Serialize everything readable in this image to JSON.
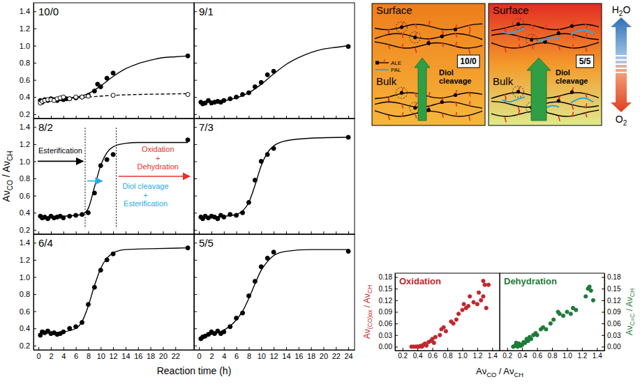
{
  "chart_data": [
    {
      "type": "scatter",
      "title": "10/0",
      "xlim": [
        -0.8,
        25
      ],
      "ylim": [
        0.15,
        1.5
      ],
      "xticks": [
        0,
        2,
        4,
        6,
        8,
        10,
        12,
        14,
        16,
        18,
        20,
        22
      ],
      "yticks": [
        0.2,
        0.4,
        0.6,
        0.8,
        {
          "value": 1,
          "label": "1.0"
        },
        1.2,
        1.4
      ],
      "tick_labels": "y",
      "series": [
        {
          "type": "scatter",
          "marker": "circle",
          "color": "#000000",
          "x": [
            0.3,
            0.6,
            1,
            1.5,
            2,
            2.5,
            3,
            3.5,
            4,
            4.5,
            5,
            6,
            7,
            8,
            9,
            9.5,
            10,
            11,
            12,
            24
          ],
          "values": [
            0.36,
            0.34,
            0.37,
            0.36,
            0.38,
            0.37,
            0.36,
            0.38,
            0.37,
            0.38,
            0.38,
            0.39,
            0.4,
            0.42,
            0.47,
            0.55,
            0.52,
            0.62,
            0.68,
            0.88
          ]
        },
        {
          "type": "scatter",
          "marker": "open_circle",
          "color": "#000000",
          "x": [
            0.3,
            0.6,
            1,
            1.5,
            2,
            2.5,
            3,
            3.5,
            4,
            5,
            6,
            7,
            8,
            12,
            24
          ],
          "values": [
            0.33,
            0.35,
            0.36,
            0.37,
            0.37,
            0.36,
            0.38,
            0.39,
            0.4,
            0.38,
            0.4,
            0.4,
            0.41,
            0.42,
            0.43
          ]
        },
        {
          "type": "line",
          "line_style": "solid",
          "color": "#000000",
          "x": [
            0,
            2,
            4,
            6,
            8,
            10,
            12,
            14,
            16,
            18,
            20,
            22,
            24
          ],
          "values": [
            0.36,
            0.37,
            0.38,
            0.4,
            0.44,
            0.53,
            0.64,
            0.73,
            0.79,
            0.83,
            0.86,
            0.87,
            0.88
          ]
        },
        {
          "type": "line",
          "line_style": "dashed",
          "color": "#000000",
          "x": [
            0,
            4,
            8,
            12,
            16,
            20,
            24
          ],
          "values": [
            0.34,
            0.38,
            0.4,
            0.42,
            0.43,
            0.435,
            0.44
          ]
        }
      ]
    },
    {
      "type": "scatter",
      "title": "9/1",
      "xlim": [
        -0.8,
        25
      ],
      "ylim": [
        0.15,
        1.5
      ],
      "xticks": [
        0,
        2,
        4,
        6,
        8,
        10,
        12,
        14,
        16,
        18,
        20,
        22,
        24
      ],
      "yticks": [
        0.2,
        0.4,
        0.6,
        0.8,
        {
          "value": 1,
          "label": "1.0"
        },
        1.2,
        1.4
      ],
      "tick_labels": false,
      "series": [
        {
          "type": "scatter",
          "marker": "circle",
          "color": "#000000",
          "x": [
            0.3,
            0.6,
            1,
            1.5,
            2,
            2.5,
            3,
            3.5,
            4,
            5,
            6,
            7,
            8,
            9,
            10,
            11,
            12,
            24
          ],
          "values": [
            0.34,
            0.32,
            0.33,
            0.36,
            0.33,
            0.34,
            0.35,
            0.34,
            0.36,
            0.38,
            0.4,
            0.43,
            0.45,
            0.52,
            0.57,
            0.66,
            0.7,
            0.99
          ]
        },
        {
          "type": "line",
          "line_style": "solid",
          "color": "#000000",
          "x": [
            0,
            2,
            4,
            6,
            8,
            10,
            12,
            14,
            16,
            18,
            20,
            22,
            24
          ],
          "values": [
            0.34,
            0.35,
            0.36,
            0.39,
            0.45,
            0.55,
            0.67,
            0.78,
            0.86,
            0.92,
            0.96,
            0.98,
            1.0
          ]
        }
      ]
    },
    {
      "type": "scatter",
      "title": "8/2",
      "xlim": [
        -0.8,
        25
      ],
      "ylim": [
        0.15,
        1.5
      ],
      "xticks": [
        0,
        2,
        4,
        6,
        8,
        10,
        12,
        14,
        16,
        18,
        20,
        22
      ],
      "yticks": [
        0.2,
        0.4,
        0.6,
        0.8,
        {
          "value": 1,
          "label": "1.0"
        },
        1.2,
        1.4
      ],
      "tick_labels": "y",
      "phase_bounds": [
        7.5,
        12.5
      ],
      "annotations": [
        {
          "text": [
            "Esterification"
          ],
          "color": "#000000"
        },
        {
          "text": [
            "Diol cleavage",
            "+",
            "Esterification"
          ],
          "color": "#29abe2"
        },
        {
          "text": [
            "Oxidation",
            "+",
            "Dehydration"
          ],
          "color": "#e8312a"
        }
      ],
      "series": [
        {
          "type": "scatter",
          "marker": "circle",
          "color": "#000000",
          "x": [
            0.3,
            0.6,
            1,
            1.5,
            2,
            2.5,
            3,
            3.5,
            4,
            5,
            6,
            7,
            8,
            9,
            10,
            11,
            12,
            24
          ],
          "values": [
            0.36,
            0.34,
            0.35,
            0.33,
            0.36,
            0.34,
            0.35,
            0.36,
            0.34,
            0.36,
            0.37,
            0.38,
            0.4,
            0.63,
            0.95,
            1.02,
            1.08,
            1.25
          ]
        },
        {
          "type": "line",
          "line_style": "solid",
          "color": "#000000",
          "x": [
            0,
            4,
            6,
            7,
            8,
            9,
            10,
            11,
            12,
            14,
            16,
            20,
            24
          ],
          "values": [
            0.35,
            0.36,
            0.37,
            0.38,
            0.45,
            0.7,
            0.95,
            1.1,
            1.17,
            1.21,
            1.22,
            1.22,
            1.22
          ]
        }
      ]
    },
    {
      "type": "scatter",
      "title": "7/3",
      "xlim": [
        -0.8,
        25
      ],
      "ylim": [
        0.15,
        1.5
      ],
      "xticks": [
        0,
        2,
        4,
        6,
        8,
        10,
        12,
        14,
        16,
        18,
        20,
        22,
        24
      ],
      "yticks": [
        0.2,
        0.4,
        0.6,
        0.8,
        {
          "value": 1,
          "label": "1.0"
        },
        1.2,
        1.4
      ],
      "tick_labels": false,
      "series": [
        {
          "type": "scatter",
          "marker": "circle",
          "color": "#000000",
          "x": [
            0.3,
            0.6,
            1,
            1.5,
            2,
            2.5,
            3,
            3.5,
            4,
            5,
            6,
            7,
            8,
            9,
            10,
            11,
            12,
            24
          ],
          "values": [
            0.35,
            0.33,
            0.36,
            0.34,
            0.36,
            0.35,
            0.33,
            0.37,
            0.35,
            0.38,
            0.37,
            0.4,
            0.52,
            0.78,
            1.0,
            1.08,
            1.15,
            1.28
          ]
        },
        {
          "type": "line",
          "line_style": "solid",
          "color": "#000000",
          "x": [
            0,
            4,
            6,
            7,
            8,
            9,
            10,
            11,
            12,
            14,
            18,
            24
          ],
          "values": [
            0.35,
            0.36,
            0.38,
            0.42,
            0.52,
            0.72,
            0.95,
            1.1,
            1.18,
            1.24,
            1.27,
            1.28
          ]
        }
      ]
    },
    {
      "type": "scatter",
      "title": "6/4",
      "xlim": [
        -0.8,
        25
      ],
      "ylim": [
        0.15,
        1.5
      ],
      "xticks": [
        0,
        2,
        4,
        6,
        8,
        10,
        12,
        14,
        16,
        18,
        20,
        22
      ],
      "yticks": [
        0.2,
        0.4,
        0.6,
        0.8,
        {
          "value": 1,
          "label": "1.0"
        },
        1.2,
        1.4
      ],
      "tick_labels": true,
      "series": [
        {
          "type": "scatter",
          "marker": "circle",
          "color": "#000000",
          "x": [
            0.3,
            0.6,
            1,
            1.5,
            2,
            2.5,
            3,
            3.5,
            4,
            5,
            6,
            7,
            8,
            9,
            10,
            11,
            12,
            24
          ],
          "values": [
            0.32,
            0.36,
            0.35,
            0.37,
            0.34,
            0.35,
            0.33,
            0.34,
            0.36,
            0.4,
            0.42,
            0.47,
            0.68,
            0.88,
            1.08,
            1.2,
            1.27,
            1.34
          ]
        },
        {
          "type": "line",
          "line_style": "solid",
          "color": "#000000",
          "x": [
            0,
            4,
            6,
            7,
            8,
            9,
            10,
            11,
            12,
            14,
            18,
            24
          ],
          "values": [
            0.34,
            0.36,
            0.4,
            0.48,
            0.66,
            0.9,
            1.1,
            1.22,
            1.28,
            1.32,
            1.33,
            1.34
          ]
        }
      ]
    },
    {
      "type": "scatter",
      "title": "5/5",
      "xlim": [
        -0.8,
        25
      ],
      "ylim": [
        0.15,
        1.5
      ],
      "xticks": [
        0,
        2,
        4,
        6,
        8,
        10,
        12,
        14,
        16,
        18,
        20,
        22,
        24
      ],
      "yticks": [
        0.2,
        0.4,
        0.6,
        0.8,
        {
          "value": 1,
          "label": "1.0"
        },
        1.2,
        1.4
      ],
      "tick_labels": "x",
      "series": [
        {
          "type": "scatter",
          "marker": "circle",
          "color": "#000000",
          "x": [
            0.3,
            0.6,
            1,
            1.5,
            2,
            2.5,
            3,
            3.5,
            4,
            5,
            6,
            7,
            8,
            9,
            10,
            11,
            12,
            24
          ],
          "values": [
            0.28,
            0.3,
            0.31,
            0.33,
            0.36,
            0.34,
            0.37,
            0.34,
            0.36,
            0.42,
            0.52,
            0.58,
            0.78,
            0.95,
            1.12,
            1.22,
            1.29,
            1.3
          ]
        },
        {
          "type": "line",
          "line_style": "solid",
          "color": "#000000",
          "x": [
            0,
            2,
            4,
            6,
            7,
            8,
            9,
            10,
            11,
            12,
            14,
            18,
            24
          ],
          "values": [
            0.29,
            0.33,
            0.38,
            0.5,
            0.6,
            0.75,
            0.92,
            1.08,
            1.18,
            1.25,
            1.3,
            1.32,
            1.32
          ]
        }
      ]
    },
    {
      "type": "scatter",
      "title": "Oxidation",
      "xlim": [
        0.1,
        1.5
      ],
      "ylim": [
        -0.01,
        0.19
      ],
      "xticks": [
        0.2,
        0.4,
        0.6,
        0.8,
        {
          "value": 1,
          "label": "1.0"
        },
        1.2,
        1.4
      ],
      "yticks": [
        {
          "value": 0,
          "label": "0.00"
        },
        0.03,
        0.06,
        0.09,
        0.12,
        0.15,
        0.18
      ],
      "y_label": [
        "Aν",
        "(CO)ox",
        " / Aν",
        "CH"
      ],
      "series": [
        {
          "type": "scatter",
          "marker": "circle",
          "color": "#c1272d",
          "x": [
            0.32,
            0.35,
            0.38,
            0.4,
            0.42,
            0.44,
            0.46,
            0.48,
            0.5,
            0.52,
            0.55,
            0.58,
            0.6,
            0.62,
            0.64,
            0.7,
            0.72,
            0.75,
            0.78,
            0.85,
            0.88,
            0.92,
            0.95,
            1.0,
            1.02,
            1.05,
            1.08,
            1.1,
            1.15,
            1.2,
            1.22,
            1.25,
            1.28,
            1.3,
            1.32,
            1.35,
            1.28
          ],
          "values": [
            0,
            0,
            0,
            0,
            0,
            0.002,
            0,
            0.005,
            0.008,
            0.003,
            0.012,
            0.015,
            0.02,
            0.01,
            0.025,
            0.03,
            0.045,
            0.05,
            0.04,
            0.065,
            0.06,
            0.07,
            0.085,
            0.095,
            0.11,
            0.1,
            0.105,
            0.13,
            0.115,
            0.11,
            0.14,
            0.12,
            0.17,
            0.16,
            0.1,
            0.16,
            0.13
          ]
        }
      ]
    },
    {
      "type": "scatter",
      "title": "Dehydration",
      "xlim": [
        0.1,
        1.5
      ],
      "y2lim": [
        -0.01,
        0.19
      ],
      "xticks": [
        0.2,
        0.4,
        0.6,
        0.8,
        {
          "value": 1,
          "label": "1.0"
        },
        1.2,
        1.4
      ],
      "y2ticks": [
        {
          "value": 0,
          "label": "0.00"
        },
        0.03,
        0.06,
        0.09,
        0.12,
        0.15,
        0.18
      ],
      "y2_label": [
        "Aν",
        "C=C",
        " / Aν",
        "CH"
      ],
      "series": [
        {
          "type": "scatter",
          "marker": "circle",
          "color": "#1e7b3a",
          "axis": "y2",
          "x": [
            0.28,
            0.3,
            0.32,
            0.34,
            0.35,
            0.36,
            0.38,
            0.4,
            0.42,
            0.44,
            0.46,
            0.48,
            0.5,
            0.52,
            0.55,
            0.58,
            0.6,
            0.65,
            0.68,
            0.72,
            0.78,
            0.82,
            0.88,
            0.9,
            0.95,
            1.0,
            1.05,
            1.08,
            1.12,
            1.25,
            1.28,
            1.3,
            1.32,
            1.35
          ],
          "values": [
            0,
            0.002,
            0.01,
            0,
            0.004,
            0.008,
            0.002,
            0.005,
            0.012,
            0.01,
            0.02,
            0.015,
            0.025,
            0.02,
            0.03,
            0.035,
            0.03,
            0.045,
            0.05,
            0.045,
            0.06,
            0.07,
            0.09,
            0.085,
            0.08,
            0.09,
            0.085,
            0.1,
            0.095,
            0.13,
            0.15,
            0.155,
            0.145,
            0.12
          ]
        }
      ]
    }
  ],
  "figure": {
    "kinetics": {
      "x_label": "Reaction time (h)",
      "y_label": [
        "Aν",
        "CO",
        " / Aν",
        "CH"
      ]
    },
    "correlation": {
      "x_label": [
        "Aν",
        "CO",
        " / Aν",
        "CH"
      ]
    }
  },
  "diagram": {
    "panels": [
      {
        "surface": "Surface",
        "bulk": "Bulk",
        "sample": "10/0",
        "process": [
          "Diol",
          "cleavage"
        ],
        "legend": [
          {
            "name": "ALE",
            "color": "#000000"
          },
          {
            "name": "PAL",
            "color": "#29abe2"
          }
        ],
        "background": [
          "#ee7d1a",
          "#f6b73c"
        ]
      },
      {
        "surface": "Surface",
        "bulk": "Bulk",
        "sample": "5/5",
        "process": [
          "Diol",
          "cleavage"
        ],
        "background": [
          "#e42c24",
          "#f39a2a",
          "#dfe98c"
        ]
      }
    ],
    "atmosphere": {
      "top": [
        "H",
        "2",
        "O"
      ],
      "bottom": [
        "O",
        "2"
      ]
    }
  }
}
